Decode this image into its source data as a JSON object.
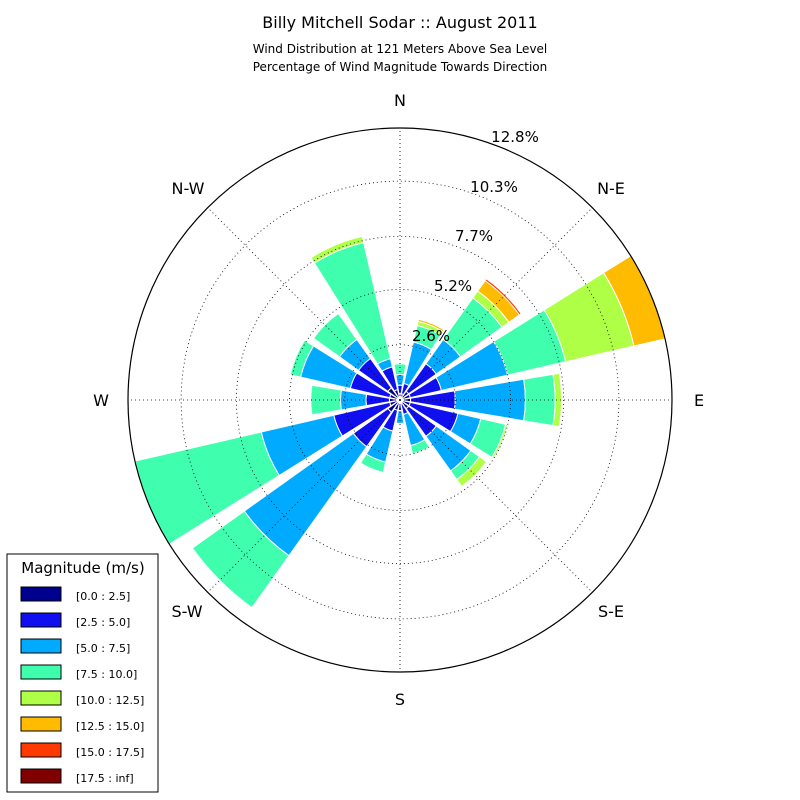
{
  "chart_data": {
    "type": "windrose",
    "title": "Billy Mitchell Sodar :: August 2011",
    "subtitle_lines": [
      "Wind Distribution at 121 Meters Above Sea Level",
      "Percentage of Wind Magnitude Towards Direction"
    ],
    "directions": [
      "N",
      "N-E",
      "E",
      "S-E",
      "S",
      "S-W",
      "W",
      "N-W"
    ],
    "radial_ticks": [
      "2.6%",
      "5.2%",
      "7.7%",
      "10.3%",
      "12.8%"
    ],
    "radial_tick_values": [
      2.6,
      5.2,
      7.7,
      10.3,
      12.8
    ],
    "rmax": 12.8,
    "grid": true,
    "legend": {
      "title": "Magnitude (m/s)",
      "placement": "bottom-left",
      "entries": [
        "[0.0 : 2.5]",
        "[2.5 : 5.0]",
        "[5.0 : 7.5]",
        "[7.5 : 10.0]",
        "[10.0 : 12.5]",
        "[12.5 : 15.0]",
        "[15.0 : 17.5]",
        "[17.5 : inf]"
      ]
    },
    "colors": [
      "#00008f",
      "#0f0ff0",
      "#00aaff",
      "#3fffaf",
      "#b0ff47",
      "#ffbb00",
      "#ff3a00",
      "#800000"
    ],
    "sectors_deg": [
      0,
      22.5,
      45,
      67.5,
      90,
      112.5,
      135,
      157.5,
      180,
      202.5,
      225,
      247.5,
      270,
      292.5,
      315,
      337.5
    ],
    "cumulative_percent": [
      [
        0.3,
        0.7,
        1.2,
        1.7
      ],
      [
        0.3,
        0.8,
        2.8,
        3.6,
        3.8,
        3.9
      ],
      [
        0.5,
        2.1,
        3.5,
        5.9,
        6.3,
        6.9,
        7.0
      ],
      [
        0.5,
        2.0,
        5.2,
        8.0,
        11.3,
        12.8
      ],
      [
        0.5,
        2.6,
        5.9,
        7.3,
        7.6
      ],
      [
        0.5,
        2.8,
        3.9,
        5.1,
        5.2
      ],
      [
        0.5,
        2.1,
        4.1,
        4.6,
        5.0
      ],
      [
        0.2,
        0.7,
        2.2,
        2.6
      ],
      [
        0.2,
        0.5,
        1.1
      ],
      [
        0.5,
        1.5,
        3.0,
        3.5
      ],
      [
        0.7,
        2.7,
        9.0,
        12.0
      ],
      [
        0.5,
        3.2,
        6.7,
        12.8
      ],
      [
        0.5,
        1.6,
        2.8,
        4.2
      ],
      [
        0.5,
        2.4,
        4.8,
        5.3
      ],
      [
        0.7,
        2.4,
        3.5,
        5.0
      ],
      [
        0.5,
        1.6,
        2.0,
        7.6,
        7.9
      ]
    ]
  }
}
